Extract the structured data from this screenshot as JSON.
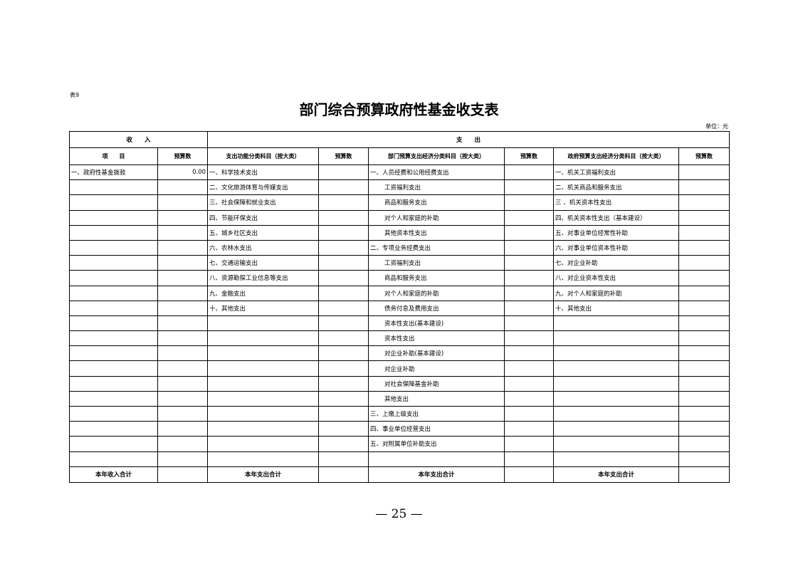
{
  "table_no": "表9",
  "title": "部门综合预算政府性基金收支表",
  "unit": "单位：元",
  "header": {
    "income": "收　　入",
    "expense": "支　　出"
  },
  "columns": [
    "项　　目",
    "预算数",
    "支出功能分类科目（按大类）",
    "预算数",
    "部门预算支出经济分类科目（按大类）",
    "预算数",
    "政府预算支出经济分类科目（按大类）",
    "预算数"
  ],
  "rows": [
    [
      "一、政府性基金拨款",
      "0.00",
      "一、科学技术支出",
      "",
      "一、人员经费和公用经费支出",
      "",
      "一、机关工资福利支出",
      ""
    ],
    [
      "",
      "",
      "二、文化旅游体育与传媒支出",
      "",
      "工资福利支出",
      "",
      "二、机关商品和服务支出",
      ""
    ],
    [
      "",
      "",
      "三、社会保障和就业支出",
      "",
      "商品和服务支出",
      "",
      "三 、机关资本性支出",
      ""
    ],
    [
      "",
      "",
      "四、节能环保支出",
      "",
      "对个人和家庭的补助",
      "",
      "四、机关资本性支出（基本建设）",
      ""
    ],
    [
      "",
      "",
      "五、城乡社区支出",
      "",
      "其他资本性支出",
      "",
      "五、对事业单位经常性补助",
      ""
    ],
    [
      "",
      "",
      "六、农林水支出",
      "",
      "二、专项业务经费支出",
      "",
      "六、对事业单位资本性补助",
      ""
    ],
    [
      "",
      "",
      "七、交通运输支出",
      "",
      "工资福利支出",
      "",
      "七、对企业补助",
      ""
    ],
    [
      "",
      "",
      "八、资源勘探工业信息等支出",
      "",
      "商品和服务支出",
      "",
      "八、对企业资本性支出",
      ""
    ],
    [
      "",
      "",
      "九、金融支出",
      "",
      "对个人和家庭的补助",
      "",
      "九、对个人和家庭的补助",
      ""
    ],
    [
      "",
      "",
      "十、其他支出",
      "",
      "债务付息及费用支出",
      "",
      "十、其他支出",
      ""
    ],
    [
      "",
      "",
      "",
      "",
      "资本性支出(基本建设)",
      "",
      "",
      ""
    ],
    [
      "",
      "",
      "",
      "",
      "资本性支出",
      "",
      "",
      ""
    ],
    [
      "",
      "",
      "",
      "",
      "对企业补助(基本建设)",
      "",
      "",
      ""
    ],
    [
      "",
      "",
      "",
      "",
      "对企业补助",
      "",
      "",
      ""
    ],
    [
      "",
      "",
      "",
      "",
      "对社会保障基金补助",
      "",
      "",
      ""
    ],
    [
      "",
      "",
      "",
      "",
      "其他支出",
      "",
      "",
      ""
    ],
    [
      "",
      "",
      "",
      "",
      "三、上缴上级支出",
      "",
      "",
      ""
    ],
    [
      "",
      "",
      "",
      "",
      "四、事业单位经营支出",
      "",
      "",
      ""
    ],
    [
      "",
      "",
      "",
      "",
      "五、对附属单位补助支出",
      "",
      "",
      ""
    ],
    [
      "",
      "",
      "",
      "",
      "",
      "",
      "",
      ""
    ]
  ],
  "indented_col3_rows": [
    1,
    2,
    3,
    4,
    6,
    7,
    8,
    9,
    10,
    11,
    12,
    13,
    14,
    15
  ],
  "totals": [
    "本年收入合计",
    "",
    "本年支出合计",
    "",
    "本年支出合计",
    "",
    "本年支出合计",
    ""
  ],
  "page_number": "— 25 —"
}
